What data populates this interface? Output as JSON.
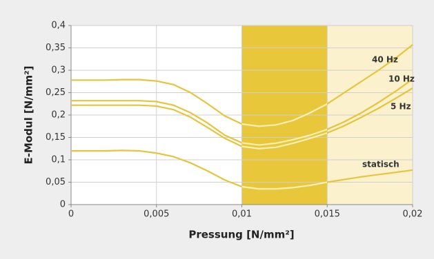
{
  "chart_data": {
    "type": "line",
    "xlabel": "Pressung [N/mm²]",
    "ylabel": "E-Modul [N/mm²]",
    "x": [
      0,
      0.001,
      0.002,
      0.003,
      0.004,
      0.005,
      0.006,
      0.007,
      0.008,
      0.009,
      0.01,
      0.011,
      0.012,
      0.013,
      0.014,
      0.015,
      0.016,
      0.017,
      0.018,
      0.019,
      0.02
    ],
    "series": [
      {
        "name": "40 Hz",
        "color": "#e6c43c",
        "values": [
          0.278,
          0.278,
          0.278,
          0.279,
          0.279,
          0.276,
          0.268,
          0.25,
          0.225,
          0.198,
          0.18,
          0.175,
          0.178,
          0.188,
          0.205,
          0.225,
          0.25,
          0.275,
          0.3,
          0.327,
          0.357
        ]
      },
      {
        "name": "10 Hz",
        "color": "#e6c43c",
        "values": [
          0.232,
          0.232,
          0.232,
          0.232,
          0.232,
          0.23,
          0.222,
          0.205,
          0.182,
          0.155,
          0.138,
          0.133,
          0.137,
          0.145,
          0.155,
          0.168,
          0.185,
          0.205,
          0.228,
          0.253,
          0.28
        ]
      },
      {
        "name": "5 Hz",
        "color": "#e6c43c",
        "values": [
          0.222,
          0.222,
          0.222,
          0.222,
          0.222,
          0.22,
          0.212,
          0.195,
          0.172,
          0.148,
          0.13,
          0.125,
          0.128,
          0.137,
          0.148,
          0.16,
          0.176,
          0.195,
          0.215,
          0.237,
          0.26
        ]
      },
      {
        "name": "statisch",
        "color": "#e6c43c",
        "values": [
          0.12,
          0.12,
          0.12,
          0.121,
          0.12,
          0.115,
          0.107,
          0.093,
          0.075,
          0.055,
          0.04,
          0.035,
          0.035,
          0.038,
          0.043,
          0.05,
          0.056,
          0.062,
          0.067,
          0.072,
          0.077
        ]
      }
    ],
    "regions": [
      {
        "xlim": [
          0.01,
          0.015
        ],
        "color": "#e8c83a",
        "line_color": "#fbefb6"
      },
      {
        "xlim": [
          0.015,
          0.02
        ],
        "color": "#fbf1cc"
      }
    ],
    "xlim": [
      0,
      0.02
    ],
    "ylim": [
      0,
      0.4
    ],
    "xticks": [
      0,
      {
        "value": 0.005,
        "label": "0,005"
      },
      {
        "value": 0.01,
        "label": "0,01"
      },
      {
        "value": 0.015,
        "label": "0,015"
      },
      {
        "value": 0.02,
        "label": "0,02"
      }
    ],
    "yticks": [
      0,
      {
        "value": 0.05,
        "label": "0,05"
      },
      {
        "value": 0.1,
        "label": "0,1"
      },
      {
        "value": 0.15,
        "label": "0,15"
      },
      {
        "value": 0.2,
        "label": "0,2"
      },
      {
        "value": 0.25,
        "label": "0,25"
      },
      {
        "value": 0.3,
        "label": "0,3"
      },
      {
        "value": 0.35,
        "label": "0,35"
      },
      {
        "value": 0.4,
        "label": "0,4"
      }
    ],
    "grid": true
  }
}
